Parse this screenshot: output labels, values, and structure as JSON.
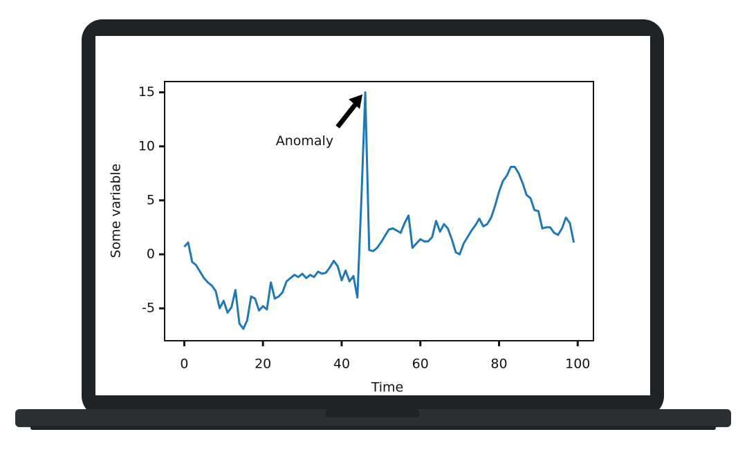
{
  "chart_data": {
    "type": "line",
    "x_label": "Time",
    "y_label": "Some variable",
    "x": [
      0,
      1,
      2,
      3,
      4,
      5,
      6,
      7,
      8,
      9,
      10,
      11,
      12,
      13,
      14,
      15,
      16,
      17,
      18,
      19,
      20,
      21,
      22,
      23,
      24,
      25,
      26,
      27,
      28,
      29,
      30,
      31,
      32,
      33,
      34,
      35,
      36,
      37,
      38,
      39,
      40,
      41,
      42,
      43,
      44,
      45,
      46,
      47,
      48,
      49,
      50,
      51,
      52,
      53,
      54,
      55,
      56,
      57,
      58,
      59,
      60,
      61,
      62,
      63,
      64,
      65,
      66,
      67,
      68,
      69,
      70,
      71,
      72,
      73,
      74,
      75,
      76,
      77,
      78,
      79,
      80,
      81,
      82,
      83,
      84,
      85,
      86,
      87,
      88,
      89,
      90,
      91,
      92,
      93,
      94,
      95,
      96,
      97,
      98,
      99
    ],
    "series": [
      {
        "name": "Some variable",
        "color": "#1f77b4",
        "values": [
          0.7,
          1.1,
          -0.7,
          -1.0,
          -1.6,
          -2.2,
          -2.6,
          -2.9,
          -3.4,
          -5.0,
          -4.3,
          -5.4,
          -4.9,
          -3.3,
          -6.4,
          -6.9,
          -6.1,
          -3.9,
          -4.1,
          -5.2,
          -4.8,
          -5.1,
          -2.6,
          -4.1,
          -3.9,
          -3.5,
          -2.5,
          -2.2,
          -1.9,
          -2.1,
          -1.8,
          -2.2,
          -1.9,
          -2.1,
          -1.6,
          -1.8,
          -1.7,
          -1.2,
          -0.6,
          -1.1,
          -2.4,
          -1.5,
          -2.5,
          -2.0,
          -4.0,
          5.0,
          15.0,
          0.4,
          0.3,
          0.6,
          1.1,
          1.7,
          2.3,
          2.4,
          2.2,
          2.0,
          2.9,
          3.6,
          0.6,
          1.0,
          1.4,
          1.2,
          1.2,
          1.6,
          3.1,
          2.1,
          2.8,
          2.4,
          1.4,
          0.2,
          0.0,
          1.0,
          1.6,
          2.2,
          2.7,
          3.3,
          2.6,
          2.8,
          3.4,
          4.5,
          5.8,
          6.8,
          7.3,
          8.1,
          8.1,
          7.5,
          6.6,
          5.5,
          5.2,
          4.1,
          4.0,
          2.4,
          2.5,
          2.5,
          2.0,
          1.8,
          2.4,
          3.4,
          2.9,
          1.1
        ]
      }
    ],
    "annotation": {
      "text": "Anomaly",
      "x": 46,
      "y": 15
    },
    "xlim": [
      -5,
      104
    ],
    "ylim": [
      -8,
      16
    ],
    "xticks": [
      0,
      20,
      40,
      60,
      80,
      100
    ],
    "yticks": [
      -5,
      0,
      5,
      10,
      15
    ]
  }
}
